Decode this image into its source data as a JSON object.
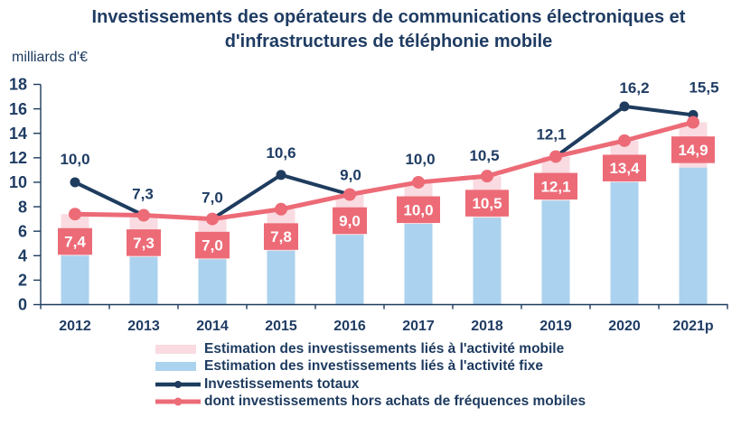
{
  "title": {
    "line1": "Investissements des opérateurs de communications électroniques et",
    "line2": "d'infrastructures de téléphonie mobile"
  },
  "unit_label": "milliards d'€",
  "colors": {
    "navy_text": "#1f3c63",
    "navy_line": "#1e3c5e",
    "salmon": "#ec6b77",
    "light_pink_bar": "#f9dbe1",
    "light_blue_bar": "#abd2ee",
    "label_box_text": "#ffffff",
    "background": "#ffffff"
  },
  "chart_data": {
    "type": "bar",
    "subtype": "stacked-bars-with-lines",
    "title": "Investissements des opérateurs de communications électroniques et d'infrastructures de téléphonie mobile",
    "ylabel": "milliards d'€",
    "xlabel": "",
    "categories": [
      "2012",
      "2013",
      "2014",
      "2015",
      "2016",
      "2017",
      "2018",
      "2019",
      "2020",
      "2021p"
    ],
    "series": [
      {
        "name": "Estimation des investissements liés à l'activité mobile",
        "type": "bar-stacked",
        "color": "#f9dbe1",
        "values": [
          3.4,
          3.4,
          3.3,
          3.4,
          3.3,
          3.4,
          3.4,
          3.6,
          3.4,
          3.7
        ]
      },
      {
        "name": "Estimation des investissements liés à l'activité fixe",
        "type": "bar-stacked",
        "color": "#abd2ee",
        "values": [
          4.0,
          3.9,
          3.7,
          4.4,
          5.7,
          6.6,
          7.1,
          8.5,
          10.0,
          11.2
        ]
      },
      {
        "name": "Investissements totaux",
        "type": "line",
        "color": "#1e3c5e",
        "values": [
          10.0,
          7.3,
          7.0,
          10.6,
          9.0,
          10.0,
          10.5,
          12.1,
          16.2,
          15.5
        ],
        "labels": [
          "10,0",
          "7,3",
          "7,0",
          "10,6",
          "9,0",
          "10,0",
          "10,5",
          "12,1",
          "16,2",
          "15,5"
        ]
      },
      {
        "name": "dont investissements hors achats de fréquences mobiles",
        "type": "line",
        "color": "#ec6b77",
        "values": [
          7.4,
          7.3,
          7.0,
          7.8,
          9.0,
          10.0,
          10.5,
          12.1,
          13.4,
          14.9
        ],
        "labels": [
          "7,4",
          "7,3",
          "7,0",
          "7,8",
          "9,0",
          "10,0",
          "10,5",
          "12,1",
          "13,4",
          "14,9"
        ]
      }
    ],
    "ylim": [
      0,
      18
    ],
    "ytick_step": 2,
    "yticks": [
      0,
      2,
      4,
      6,
      8,
      10,
      12,
      14,
      16,
      18
    ],
    "grid": false,
    "legend_position": "bottom"
  },
  "legend": {
    "items": [
      {
        "label": "Estimation des investissements liés à l'activité mobile",
        "swatch": "rect",
        "color": "#f9dbe1"
      },
      {
        "label": "Estimation des investissements liés à l'activité fixe",
        "swatch": "rect",
        "color": "#abd2ee"
      },
      {
        "label": "Investissements totaux",
        "swatch": "line-marker",
        "color": "#1e3c5e"
      },
      {
        "label": "dont investissements hors achats de fréquences mobiles",
        "swatch": "line-marker",
        "color": "#ec6b77"
      }
    ]
  }
}
